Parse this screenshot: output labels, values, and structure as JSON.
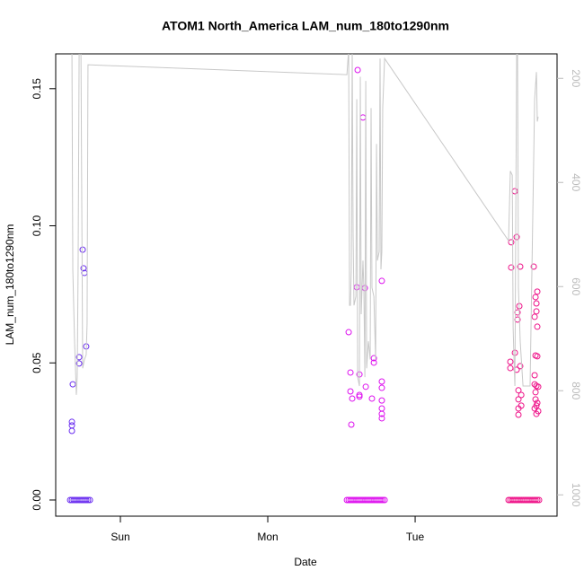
{
  "chart_data": {
    "type": "scatter",
    "title": "ATOM1 North_America LAM_num_180to1290nm",
    "xlabel": "Date",
    "ylabel": "LAM_num_180to1290nm",
    "xlim": [
      -0.439,
      2.963
    ],
    "xticks": [
      {
        "value": 0,
        "label": "Sun"
      },
      {
        "value": 1,
        "label": "Mon"
      },
      {
        "value": 2,
        "label": "Tue"
      }
    ],
    "ylim": [
      -0.0059,
      0.1627
    ],
    "yticks": [
      {
        "value": 0,
        "label": "0.00"
      },
      0.05,
      {
        "value": 0.1,
        "label": "0.10"
      },
      0.15
    ],
    "y2lim": [
      1041,
      153
    ],
    "y2ticks": [
      200,
      400,
      600,
      800,
      1000
    ],
    "y2color": "#bbbbbb",
    "series": [
      {
        "type": "scatter",
        "color": "#6a2df0",
        "x": [
          -0.341,
          -0.329,
          -0.317,
          -0.305,
          -0.293,
          -0.28,
          -0.268,
          -0.256,
          -0.244,
          -0.232,
          -0.22,
          -0.207,
          -0.329,
          -0.329,
          -0.329,
          -0.323,
          -0.28,
          -0.28,
          -0.256,
          -0.25,
          -0.244,
          -0.232
        ],
        "values": [
          0,
          0,
          0,
          0,
          0,
          0,
          0,
          0,
          0,
          0,
          0,
          0,
          0.0285,
          0.0272,
          0.0252,
          0.0422,
          0.0521,
          0.0498,
          0.0913,
          0.0845,
          0.0828,
          0.056
        ]
      },
      {
        "type": "scatter",
        "color": "#dd11ee",
        "x": [
          1.537,
          1.549,
          1.561,
          1.573,
          1.585,
          1.598,
          1.61,
          1.622,
          1.634,
          1.646,
          1.659,
          1.671,
          1.683,
          1.695,
          1.707,
          1.72,
          1.732,
          1.744,
          1.756,
          1.768,
          1.78,
          1.793,
          1.549,
          1.561,
          1.561,
          1.567,
          1.573,
          1.604,
          1.61,
          1.622,
          1.622,
          1.622,
          1.646,
          1.659,
          1.665,
          1.707,
          1.72,
          1.72,
          1.774,
          1.774,
          1.774,
          1.774,
          1.774,
          1.774,
          1.774
        ],
        "values": [
          0,
          0,
          0,
          0,
          0,
          0,
          0,
          0,
          0,
          0,
          0,
          0,
          0,
          0,
          0,
          0,
          0,
          0,
          0,
          0,
          0,
          0,
          0.0612,
          0.0465,
          0.0396,
          0.0275,
          0.037,
          0.0776,
          0.1568,
          0.0458,
          0.0383,
          0.0377,
          0.1395,
          0.0773,
          0.0413,
          0.037,
          0.0517,
          0.0501,
          0.0799,
          0.0432,
          0.0409,
          0.0363,
          0.0334,
          0.0314,
          0.0298
        ]
      },
      {
        "type": "scatter",
        "color": "#ee1188",
        "x": [
          2.634,
          2.646,
          2.659,
          2.671,
          2.683,
          2.695,
          2.707,
          2.72,
          2.732,
          2.744,
          2.756,
          2.768,
          2.78,
          2.793,
          2.805,
          2.817,
          2.829,
          2.841,
          2.652,
          2.652,
          2.646,
          2.646,
          2.677,
          2.677,
          2.689,
          2.689,
          2.695,
          2.695,
          2.701,
          2.701,
          2.701,
          2.701,
          2.707,
          2.713,
          2.713,
          2.72,
          2.72,
          2.805,
          2.811,
          2.817,
          2.823,
          2.823,
          2.829,
          2.829,
          2.817,
          2.829,
          2.811,
          2.811,
          2.823,
          2.835,
          2.817,
          2.817,
          2.829,
          2.823,
          2.811,
          2.835,
          2.823
        ],
        "values": [
          0,
          0,
          0,
          0,
          0,
          0,
          0,
          0,
          0,
          0,
          0,
          0,
          0,
          0,
          0,
          0,
          0,
          0,
          0.094,
          0.0848,
          0.0504,
          0.0481,
          0.1126,
          0.0537,
          0.0959,
          0.0475,
          0.0684,
          0.0658,
          0.04,
          0.0367,
          0.0334,
          0.0311,
          0.0707,
          0.0851,
          0.0488,
          0.0383,
          0.0344,
          0.0851,
          0.0668,
          0.074,
          0.0717,
          0.0688,
          0.076,
          0.0632,
          0.0527,
          0.0524,
          0.0455,
          0.0422,
          0.0416,
          0.0413,
          0.0393,
          0.0367,
          0.0354,
          0.0344,
          0.0334,
          0.0324,
          0.0314
        ]
      },
      {
        "type": "line",
        "axis": "y2",
        "color": "#c8c8c8",
        "x": [
          -0.329,
          -0.323,
          -0.311,
          -0.299,
          -0.293,
          -0.287,
          -0.28,
          -0.274,
          -0.268,
          -0.256,
          -0.244,
          -0.232,
          -0.226,
          -0.22,
          1.537,
          1.549,
          1.555,
          1.561,
          1.567,
          1.573,
          1.579,
          1.585,
          1.598,
          1.604,
          1.61,
          1.622,
          1.628,
          1.634,
          1.646,
          1.652,
          1.659,
          1.665,
          1.671,
          1.683,
          1.695,
          1.701,
          1.707,
          1.72,
          1.732,
          1.738,
          1.744,
          1.756,
          1.762,
          1.768,
          1.774,
          1.78,
          1.793,
          2.634,
          2.646,
          2.659,
          2.665,
          2.671,
          2.677,
          2.689,
          2.695,
          2.701,
          2.713,
          2.732,
          2.78,
          2.811,
          2.823,
          2.829,
          2.835
        ],
        "values": [
          136,
          567,
          705,
          808,
          774,
          567,
          153,
          136,
          136,
          757,
          740,
          731,
          671,
          174,
          193,
          145,
          636,
          636,
          567,
          145,
          498,
          636,
          619,
          240,
          774,
          791,
          197,
          653,
          550,
          602,
          774,
          205,
          757,
          705,
          740,
          257,
          602,
          619,
          740,
          326,
          550,
          533,
          162,
          567,
          533,
          257,
          162,
          512,
          378,
          386,
          679,
          740,
          791,
          153,
          153,
          602,
          705,
          791,
          791,
          240,
          188,
          283,
          274
        ]
      }
    ]
  }
}
